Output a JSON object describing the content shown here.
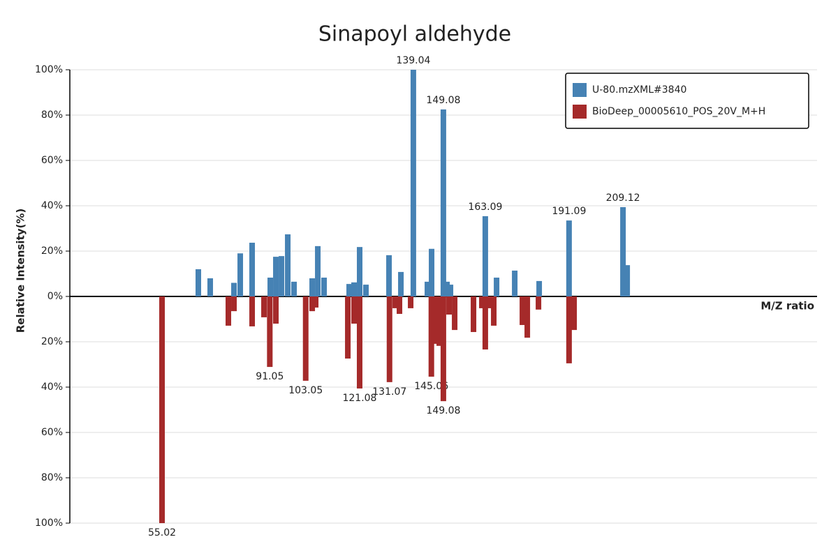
{
  "chart_data": {
    "type": "mirror-spectrum",
    "title": "Sinapoyl aldehyde",
    "x_label": "M/Z ratio",
    "y_label": "Relative Intensity(%)",
    "xlim": [
      24.2,
      274
    ],
    "ylim": [
      -100,
      100
    ],
    "yticks": [
      {
        "value": -100,
        "label": "100%"
      },
      {
        "value": -80,
        "label": "80%"
      },
      {
        "value": -60,
        "label": "60%"
      },
      {
        "value": -40,
        "label": "40%"
      },
      {
        "value": -20,
        "label": "20%"
      },
      {
        "value": 0,
        "label": "0%"
      },
      {
        "value": 20,
        "label": "20%"
      },
      {
        "value": 40,
        "label": "40%"
      },
      {
        "value": 60,
        "label": "60%"
      },
      {
        "value": 80,
        "label": "80%"
      },
      {
        "value": 100,
        "label": "100%"
      }
    ],
    "grid": true,
    "legend": "top-right",
    "series": [
      {
        "name": "U-80.mzXML#3840",
        "color": "#4682b4",
        "x": [
          67.16,
          71.13,
          79.07,
          81.17,
          85.14,
          91.21,
          93.08,
          94.95,
          97.05,
          99.15,
          105.22,
          107.09,
          109.19,
          117.59,
          119.23,
          121.09,
          123.19,
          130.9,
          134.87,
          139.04,
          143.74,
          145.14,
          149.08,
          150.28,
          151.45,
          163.09,
          166.86,
          172.93,
          181.1,
          191.09,
          209.12,
          210.52
        ],
        "values": [
          12,
          8,
          6,
          19,
          23.7,
          8.3,
          17.5,
          17.8,
          27.4,
          6.5,
          8,
          22.2,
          8.3,
          5.5,
          6.2,
          21.8,
          5.2,
          18.2,
          10.8,
          100,
          6.5,
          21,
          82.5,
          6.5,
          5.2,
          35.4,
          8.3,
          11.4,
          6.8,
          33.5,
          39.4,
          13.8
        ],
        "labels": [
          null,
          null,
          null,
          null,
          null,
          null,
          null,
          null,
          null,
          null,
          null,
          null,
          null,
          null,
          null,
          null,
          null,
          null,
          null,
          "139.04",
          null,
          null,
          "149.08",
          null,
          null,
          "163.09",
          null,
          null,
          null,
          "191.09",
          "209.12",
          null
        ]
      },
      {
        "name": "BioDeep_00005610_POS_20V_M+H",
        "color": "#a52a2a",
        "x": [
          55.02,
          77.2,
          79.07,
          85.14,
          89.11,
          91.05,
          93.08,
          103.05,
          105.22,
          106.39,
          117.13,
          119.23,
          121.08,
          131.07,
          133.0,
          134.4,
          138.14,
          145.06,
          146.54,
          147.71,
          149.08,
          150.98,
          152.85,
          159.15,
          161.95,
          163.09,
          164.76,
          165.92,
          175.5,
          177.13,
          180.87,
          191.09,
          192.77
        ],
        "values": [
          -100,
          -12.9,
          -6.5,
          -13.2,
          -9.2,
          -31.1,
          -12,
          -37.2,
          -6.5,
          -4.9,
          -27.4,
          -12,
          -40.6,
          -37.8,
          -5.2,
          -7.7,
          -5.2,
          -35.4,
          -20.9,
          -21.8,
          -46.2,
          -8,
          -14.8,
          -15.7,
          -5.2,
          -23.4,
          -5.2,
          -12.9,
          -12.6,
          -18.2,
          -5.8,
          -29.5,
          -14.8
        ],
        "labels": [
          "55.02",
          null,
          null,
          null,
          null,
          "91.05",
          null,
          "103.05",
          null,
          null,
          null,
          null,
          "121.08",
          "131.07",
          null,
          null,
          null,
          "145.06",
          null,
          null,
          "149.08",
          null,
          null,
          null,
          null,
          null,
          null,
          null,
          null,
          null,
          null,
          null,
          null
        ]
      }
    ]
  }
}
